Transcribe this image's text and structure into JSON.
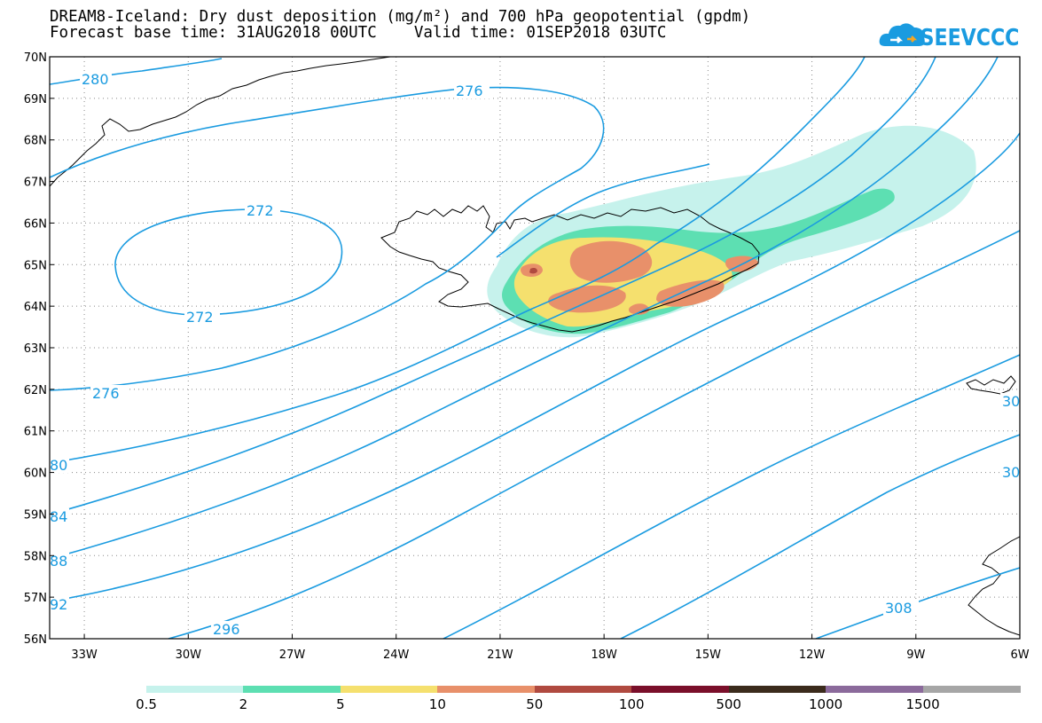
{
  "title": {
    "line1": "DREAM8-Iceland: Dry dust deposition (mg/m²) and 700 hPa geopotential (gpdm)",
    "line2": "Forecast base time: 31AUG2018 00UTC    Valid time: 01SEP2018 03UTC"
  },
  "logo": {
    "text": "SEEVCCC",
    "icon": "cloud-icon",
    "color": "#1a9be0"
  },
  "map": {
    "lon_range": [
      -34,
      -6
    ],
    "lat_range": [
      56,
      70
    ],
    "lat_labels": [
      "70N",
      "69N",
      "68N",
      "67N",
      "66N",
      "65N",
      "64N",
      "63N",
      "62N",
      "61N",
      "60N",
      "59N",
      "58N",
      "57N",
      "56N"
    ],
    "lon_labels": [
      "33W",
      "30W",
      "27W",
      "24W",
      "21W",
      "18W",
      "15W",
      "12W",
      "9W",
      "6W"
    ],
    "contour_color": "#1a9be0",
    "contour_labels": [
      "280",
      "276",
      "272",
      "272",
      "276",
      "80",
      "84",
      "88",
      "92",
      "296",
      "308",
      "30",
      "30"
    ]
  },
  "legend": {
    "thresholds": [
      "0.5",
      "2",
      "5",
      "10",
      "50",
      "100",
      "500",
      "1000",
      "1500"
    ],
    "colors": [
      "#c6f2ec",
      "#5ddfb2",
      "#f5e06e",
      "#e8906a",
      "#b04a40",
      "#7a0f2a",
      "#3b2b1c",
      "#8b6a9b",
      "#a6a6a6"
    ]
  }
}
